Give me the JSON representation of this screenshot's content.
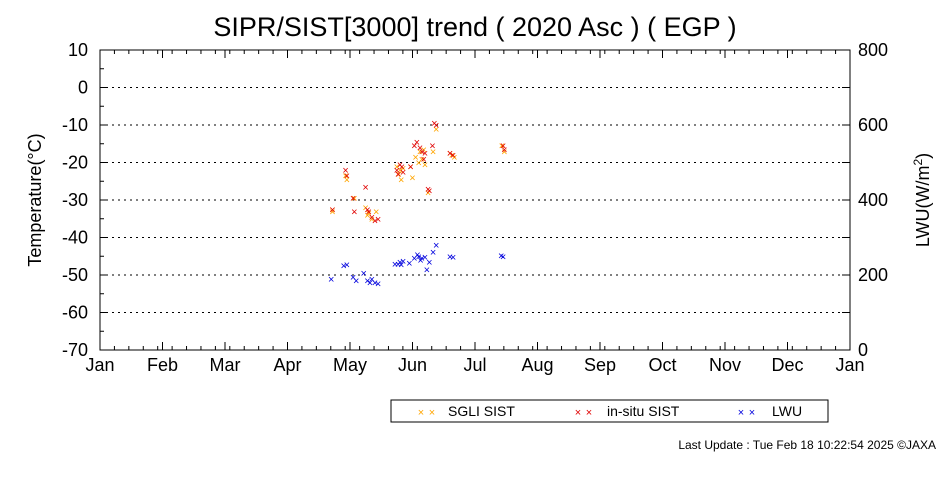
{
  "chart_data": {
    "type": "scatter",
    "title": "SIPR/SIST[3000] trend ( 2020 Asc ) ( EGP )",
    "ylabel": "Temperature(°C)",
    "y2label_main": "LWU(W/m",
    "y2label_sup": "2",
    "y2label_end": ")",
    "ylim": [
      -70,
      10
    ],
    "y2lim": [
      0,
      800
    ],
    "xlim": [
      0,
      12
    ],
    "grid": true,
    "legend_placement": "bottom-right",
    "x_ticks": [
      "Jan",
      "Feb",
      "Mar",
      "Apr",
      "May",
      "Jun",
      "Jul",
      "Aug",
      "Sep",
      "Oct",
      "Nov",
      "Dec",
      "Jan"
    ],
    "y_ticks": [
      "10",
      "0",
      "-10",
      "-20",
      "-30",
      "-40",
      "-50",
      "-60",
      "-70"
    ],
    "y2_ticks": [
      "800",
      "600",
      "400",
      "200",
      "0"
    ],
    "series": [
      {
        "name": "SGLI SIST",
        "color": "#ffa500",
        "axis": "left",
        "points": [
          [
            3.72,
            -32.5
          ],
          [
            3.72,
            -33.0
          ],
          [
            3.93,
            -23.5
          ],
          [
            3.95,
            -24.5
          ],
          [
            4.07,
            -29.5
          ],
          [
            4.25,
            -32.0
          ],
          [
            4.28,
            -34.0
          ],
          [
            4.3,
            -33.5
          ],
          [
            4.35,
            -35.0
          ],
          [
            4.42,
            -33.0
          ],
          [
            4.75,
            -21.0
          ],
          [
            4.78,
            -23.0
          ],
          [
            4.8,
            -22.0
          ],
          [
            4.82,
            -24.5
          ],
          [
            4.85,
            -21.5
          ],
          [
            4.97,
            -21.0
          ],
          [
            5.0,
            -24.0
          ],
          [
            5.05,
            -18.5
          ],
          [
            5.1,
            -20.0
          ],
          [
            5.12,
            -17.0
          ],
          [
            5.15,
            -19.0
          ],
          [
            5.18,
            -16.5
          ],
          [
            5.2,
            -20.5
          ],
          [
            5.25,
            -28.0
          ],
          [
            5.33,
            -17.0
          ],
          [
            5.38,
            -11.0
          ],
          [
            5.6,
            -17.5
          ],
          [
            5.63,
            -18.0
          ],
          [
            5.67,
            -18.5
          ],
          [
            6.43,
            -15.5
          ],
          [
            6.47,
            -17.0
          ]
        ]
      },
      {
        "name": "in-situ SIST",
        "color": "#e00000",
        "axis": "left",
        "points": [
          [
            3.72,
            -32.5
          ],
          [
            3.93,
            -22.0
          ],
          [
            3.95,
            -23.5
          ],
          [
            4.05,
            -29.5
          ],
          [
            4.07,
            -33.0
          ],
          [
            4.25,
            -26.5
          ],
          [
            4.28,
            -32.5
          ],
          [
            4.3,
            -33.0
          ],
          [
            4.35,
            -34.5
          ],
          [
            4.4,
            -35.5
          ],
          [
            4.45,
            -35.0
          ],
          [
            4.75,
            -22.0
          ],
          [
            4.77,
            -23.0
          ],
          [
            4.8,
            -20.5
          ],
          [
            4.83,
            -21.0
          ],
          [
            4.85,
            -22.5
          ],
          [
            4.97,
            -21.0
          ],
          [
            5.03,
            -15.5
          ],
          [
            5.07,
            -14.5
          ],
          [
            5.12,
            -16.0
          ],
          [
            5.15,
            -17.0
          ],
          [
            5.18,
            -19.0
          ],
          [
            5.2,
            -17.5
          ],
          [
            5.25,
            -27.0
          ],
          [
            5.27,
            -27.5
          ],
          [
            5.32,
            -15.5
          ],
          [
            5.35,
            -9.5
          ],
          [
            5.38,
            -10.0
          ],
          [
            5.6,
            -17.5
          ],
          [
            5.65,
            -18.0
          ],
          [
            6.45,
            -15.5
          ],
          [
            6.47,
            -16.5
          ]
        ]
      },
      {
        "name": "LWU",
        "color": "#0000dd",
        "axis": "right",
        "points": [
          [
            3.7,
            190
          ],
          [
            3.9,
            225
          ],
          [
            3.95,
            228
          ],
          [
            4.05,
            195
          ],
          [
            4.1,
            185
          ],
          [
            4.22,
            205
          ],
          [
            4.28,
            185
          ],
          [
            4.32,
            180
          ],
          [
            4.35,
            190
          ],
          [
            4.4,
            180
          ],
          [
            4.45,
            178
          ],
          [
            4.72,
            230
          ],
          [
            4.77,
            230
          ],
          [
            4.8,
            235
          ],
          [
            4.82,
            228
          ],
          [
            4.85,
            238
          ],
          [
            4.95,
            232
          ],
          [
            5.03,
            245
          ],
          [
            5.08,
            255
          ],
          [
            5.1,
            250
          ],
          [
            5.13,
            240
          ],
          [
            5.15,
            245
          ],
          [
            5.2,
            248
          ],
          [
            5.23,
            215
          ],
          [
            5.27,
            235
          ],
          [
            5.33,
            262
          ],
          [
            5.38,
            280
          ],
          [
            5.6,
            250
          ],
          [
            5.65,
            248
          ],
          [
            6.42,
            252
          ],
          [
            6.45,
            250
          ]
        ]
      }
    ]
  },
  "footer": "Last Update : Tue Feb 18 10:22:54 2025  ©JAXA"
}
